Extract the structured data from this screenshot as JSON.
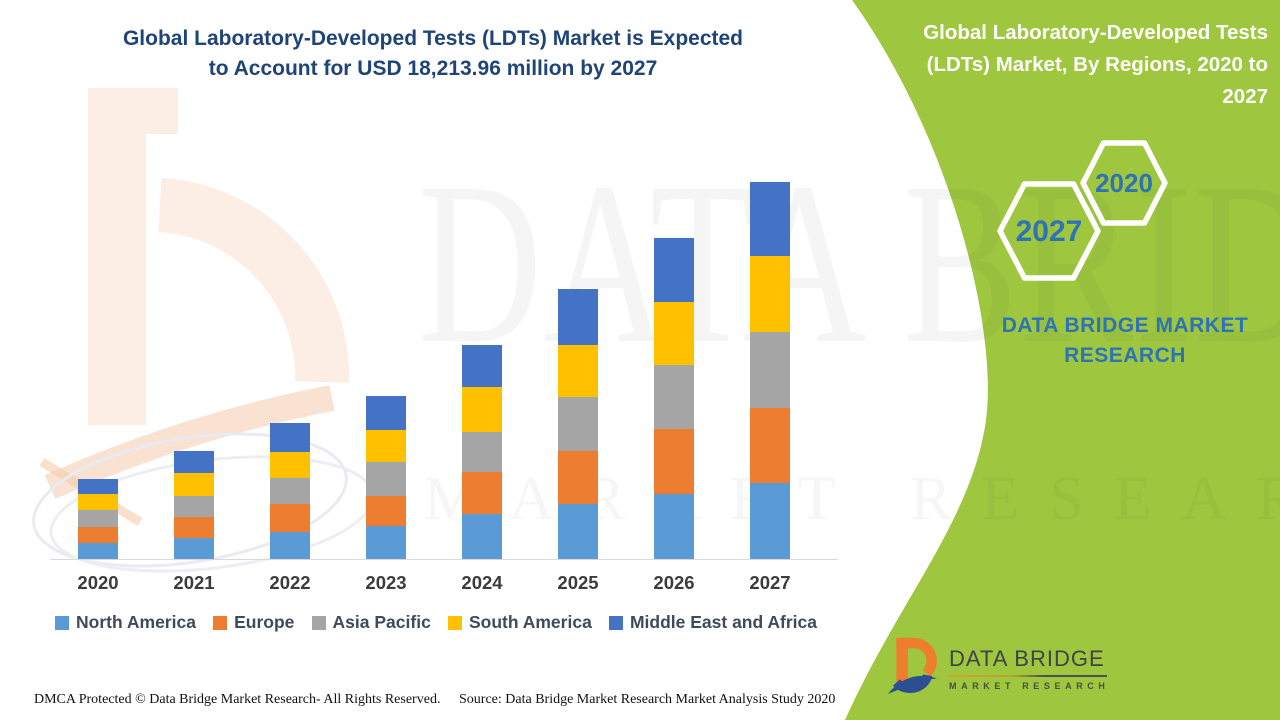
{
  "header": {
    "title_line1": "Global Laboratory-Developed Tests (LDTs) Market is Expected",
    "title_line2": "to Account for USD 18,213.96 million by 2027",
    "title_color": "#1E4478"
  },
  "side_panel": {
    "title_line1": "Global Laboratory-Developed Tests",
    "title_line2": "(LDTs) Market, By Regions, 2020 to",
    "title_line3": "2027",
    "hexagon_back_year": "2020",
    "hexagon_front_year": "2027",
    "brand_text_line1": "DATA BRIDGE MARKET",
    "brand_text_line2": "RESEARCH",
    "accent_green": "#9EC63E",
    "text_blue": "#2E74B5"
  },
  "logo": {
    "name_line": "DATA BRIDGE",
    "sub_line": "MARKET RESEARCH"
  },
  "watermark": {
    "big_text": "DATA BRIDGE",
    "sub_text": "MARKET RESEARCH"
  },
  "footer": {
    "dmca": "DMCA Protected © Data Bridge Market Research- All Rights Reserved.",
    "source": "Source: Data Bridge Market Research Market Analysis Study 2020"
  },
  "chart_data": {
    "type": "bar",
    "stacked": true,
    "unit": "USD million",
    "title": "Global Laboratory-Developed Tests (LDTs) Market, By Regions, 2020 to 2027",
    "annotation": "Expected to account for USD 18,213.96 million by 2027",
    "categories": [
      "2020",
      "2021",
      "2022",
      "2023",
      "2024",
      "2025",
      "2026",
      "2027"
    ],
    "series": [
      {
        "name": "North America",
        "color": "#5B9BD5",
        "values": [
          760,
          1020,
          1310,
          1590,
          2200,
          2640,
          3120,
          3660
        ]
      },
      {
        "name": "Europe",
        "color": "#ED7D31",
        "values": [
          810,
          1030,
          1340,
          1460,
          2020,
          2600,
          3150,
          3640
        ]
      },
      {
        "name": "Asia Pacific",
        "color": "#A5A5A5",
        "values": [
          780,
          1000,
          1250,
          1660,
          1940,
          2590,
          3120,
          3670
        ]
      },
      {
        "name": "South America",
        "color": "#FFC000",
        "values": [
          780,
          1100,
          1290,
          1540,
          2150,
          2520,
          3040,
          3640
        ]
      },
      {
        "name": "Middle East and Africa",
        "color": "#4472C4",
        "values": [
          740,
          1070,
          1380,
          1620,
          2040,
          2680,
          3100,
          3600
        ]
      }
    ],
    "totals": [
      3870,
      5220,
      6570,
      7870,
      10350,
      13030,
      15530,
      18210
    ],
    "y_total_2027_label": "18,213.96",
    "axis": {
      "x_visible": true,
      "y_visible": false,
      "gridlines": false
    },
    "legend_position": "bottom"
  }
}
